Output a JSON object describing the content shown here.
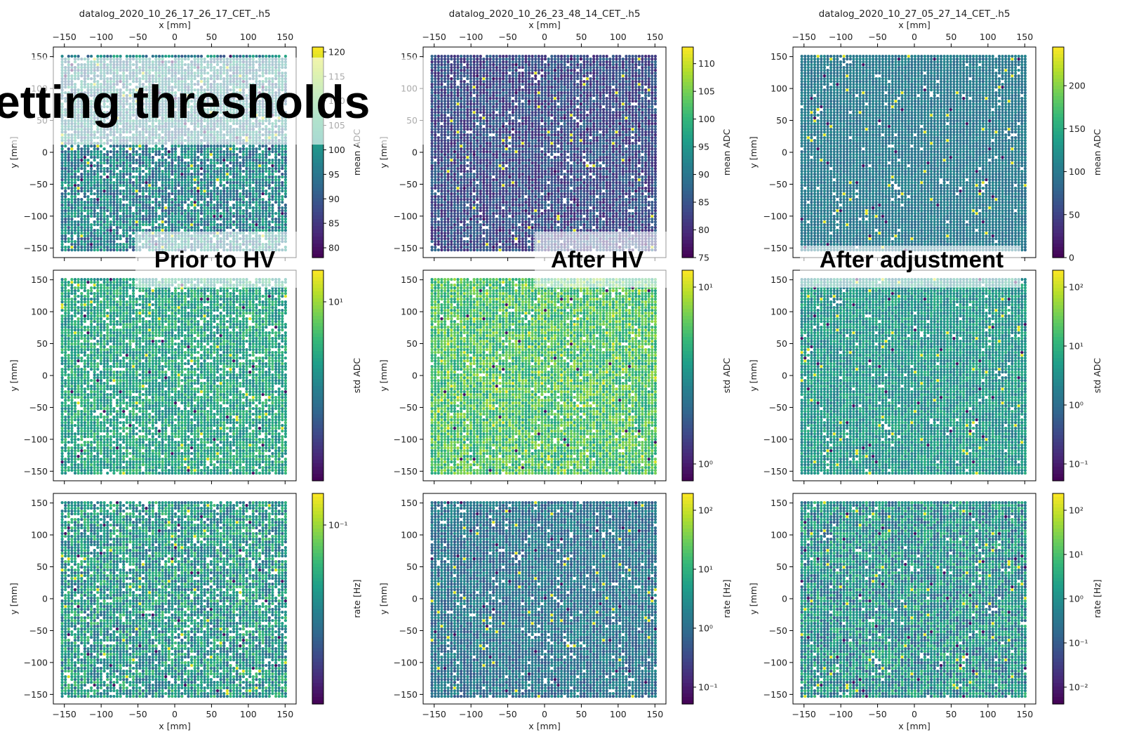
{
  "overlay": {
    "title": "etting thresholds",
    "labels": [
      "Prior to HV",
      "After HV",
      "After adjustment"
    ]
  },
  "columns": [
    {
      "file_title": "datalog_2020_10_26_17_26_17_CET_.h5"
    },
    {
      "file_title": "datalog_2020_10_26_23_48_14_CET_.h5"
    },
    {
      "file_title": "datalog_2020_10_27_05_27_14_CET_.h5"
    }
  ],
  "axes": {
    "xlabel": "x [mm]",
    "ylabel": "y [mm]",
    "xticks": [
      -150,
      -100,
      -50,
      0,
      50,
      100,
      150
    ],
    "yticks": [
      150,
      100,
      50,
      0,
      -50,
      -100,
      -150
    ],
    "xlim": [
      -165,
      165
    ],
    "ylim": [
      -165,
      165
    ]
  },
  "chart_data": [
    {
      "type": "scatter",
      "row": 1,
      "column": 1,
      "title": "datalog_2020_10_26_17_26_17_CET_.h5",
      "colorbar": {
        "label": "mean ADC",
        "scale": "linear",
        "range": [
          78,
          121
        ],
        "ticks": [
          "120",
          "115",
          "110",
          "105",
          "100",
          "95",
          "90",
          "85",
          "80"
        ]
      },
      "typical_value": 97
    },
    {
      "type": "scatter",
      "row": 1,
      "column": 2,
      "title": "datalog_2020_10_26_23_48_14_CET_.h5",
      "colorbar": {
        "label": "mean ADC",
        "scale": "linear",
        "range": [
          75,
          113
        ],
        "ticks": [
          "110",
          "105",
          "100",
          "95",
          "90",
          "85",
          "80",
          "75"
        ]
      },
      "typical_value": 84
    },
    {
      "type": "scatter",
      "row": 1,
      "column": 3,
      "title": "datalog_2020_10_27_05_27_14_CET_.h5",
      "colorbar": {
        "label": "mean ADC",
        "scale": "linear",
        "range": [
          0,
          245
        ],
        "ticks": [
          "200",
          "150",
          "100",
          "50",
          "0"
        ]
      },
      "typical_value": 100
    },
    {
      "type": "scatter",
      "row": 2,
      "column": 1,
      "colorbar": {
        "label": "std ADC",
        "scale": "log",
        "range": [
          3,
          20
        ],
        "ticks": [
          "10¹"
        ]
      },
      "typical_value": 9
    },
    {
      "type": "scatter",
      "row": 2,
      "column": 2,
      "colorbar": {
        "label": "std ADC",
        "scale": "log",
        "range": [
          0.5,
          25
        ],
        "ticks": [
          "10¹",
          "10⁰"
        ]
      },
      "typical_value": 8
    },
    {
      "type": "scatter",
      "row": 2,
      "column": 3,
      "colorbar": {
        "label": "std ADC",
        "scale": "log",
        "range": [
          0.1,
          120
        ],
        "ticks": [
          "10²",
          "10¹",
          "10⁰",
          "10⁻¹"
        ]
      },
      "typical_value": 4
    },
    {
      "type": "scatter",
      "row": 3,
      "column": 1,
      "colorbar": {
        "label": "rate [Hz]",
        "scale": "log",
        "range": [
          0.03,
          0.5
        ],
        "ticks": [
          "10⁻¹"
        ]
      },
      "typical_value": 0.13
    },
    {
      "type": "scatter",
      "row": 3,
      "column": 2,
      "colorbar": {
        "label": "rate [Hz]",
        "scale": "log",
        "range": [
          0.02,
          300
        ],
        "ticks": [
          "10²",
          "10¹",
          "10⁰",
          "10⁻¹"
        ]
      },
      "typical_value": 0.8
    },
    {
      "type": "scatter",
      "row": 3,
      "column": 3,
      "colorbar": {
        "label": "rate [Hz]",
        "scale": "log",
        "range": [
          0.002,
          150
        ],
        "ticks": [
          "10²",
          "10¹",
          "10⁰",
          "10⁻¹",
          "10⁻²"
        ]
      },
      "typical_value": 0.5
    }
  ]
}
